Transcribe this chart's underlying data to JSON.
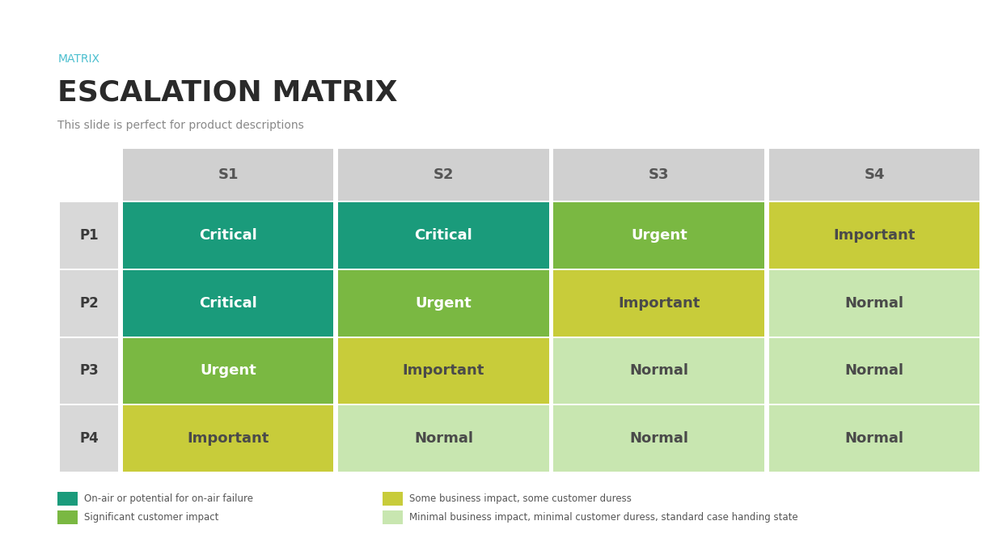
{
  "title_label": "MATRIX",
  "title": "ESCALATION MATRIX",
  "subtitle": "This slide is perfect for product descriptions",
  "title_color": "#2a2a2a",
  "title_label_color": "#4bbfcf",
  "subtitle_color": "#888888",
  "col_headers": [
    "S1",
    "S2",
    "S3",
    "S4"
  ],
  "row_headers": [
    "P1",
    "P2",
    "P3",
    "P4"
  ],
  "cell_data": [
    [
      "Critical",
      "Critical",
      "Urgent",
      "Important"
    ],
    [
      "Critical",
      "Urgent",
      "Important",
      "Normal"
    ],
    [
      "Urgent",
      "Important",
      "Normal",
      "Normal"
    ],
    [
      "Important",
      "Normal",
      "Normal",
      "Normal"
    ]
  ],
  "cell_colors": [
    [
      "#1a9b7b",
      "#1a9b7b",
      "#7ab842",
      "#c8cc3a"
    ],
    [
      "#1a9b7b",
      "#7ab842",
      "#c8cc3a",
      "#c8e6b0"
    ],
    [
      "#7ab842",
      "#c8cc3a",
      "#c8e6b0",
      "#c8e6b0"
    ],
    [
      "#c8cc3a",
      "#c8e6b0",
      "#c8e6b0",
      "#c8e6b0"
    ]
  ],
  "cell_text_colors": [
    [
      "#ffffff",
      "#ffffff",
      "#ffffff",
      "#4a4a4a"
    ],
    [
      "#ffffff",
      "#ffffff",
      "#4a4a4a",
      "#4a4a4a"
    ],
    [
      "#ffffff",
      "#4a4a4a",
      "#4a4a4a",
      "#4a4a4a"
    ],
    [
      "#4a4a4a",
      "#4a4a4a",
      "#4a4a4a",
      "#4a4a4a"
    ]
  ],
  "header_bg": "#d0d0d0",
  "header_text_color": "#555555",
  "row_header_bg": "#d8d8d8",
  "row_header_text_color": "#3a3a3a",
  "bg_color": "#ffffff",
  "legend_items": [
    {
      "color": "#1a9b7b",
      "label": "On-air or potential for on-air failure"
    },
    {
      "color": "#7ab842",
      "label": "Significant customer impact"
    },
    {
      "color": "#c8cc3a",
      "label": "Some business impact, some customer duress"
    },
    {
      "color": "#c8e6b0",
      "label": "Minimal business impact, minimal customer duress, standard case handing state"
    }
  ],
  "fig_width": 12.29,
  "fig_height": 6.91,
  "dpi": 100
}
